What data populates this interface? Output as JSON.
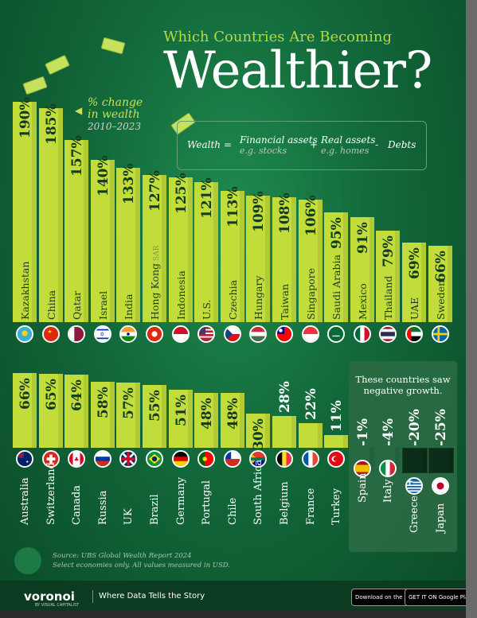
{
  "title_small": "Which Countries Are Becoming",
  "title_large": "Wealthier?",
  "legend": {
    "line1": "% change",
    "line2": "in wealth",
    "period": "2010–2023"
  },
  "formula": {
    "wealth": "Wealth",
    "eq": "=",
    "financial": "Financial assets",
    "financial_ex": "e.g. stocks",
    "plus": "+",
    "real": "Real assets",
    "real_ex": "e.g. homes",
    "minus": "-",
    "debts": "Debts"
  },
  "negative_note": "These countries saw negative growth.",
  "source_line1": "Source: UBS Global Wealth Report 2024",
  "source_line2": "Select economies only. All values measured in USD.",
  "footer": {
    "brand": "voronoi",
    "brand_sub": "BY VISUAL CAPITALIST",
    "tagline": "Where Data Tells the Story",
    "app_store": "Download on the App Store",
    "google_play": "GET IT ON Google Play"
  },
  "colors": {
    "bar": "#c2dc3a",
    "negative_bar": "#0b2d19",
    "background": "#12683a",
    "title_accent": "#b6d93c"
  },
  "chart_data": {
    "type": "bar",
    "unit": "%",
    "ylim": [
      -25,
      190
    ],
    "categories": [
      "Kazakhstan",
      "China",
      "Qatar",
      "Israel",
      "India",
      "Hong Kong",
      "Indonesia",
      "U.S.",
      "Czechia",
      "Hungary",
      "Taiwan",
      "Singapore",
      "Saudi Arabia",
      "Mexico",
      "Thailand",
      "UAE",
      "Sweden",
      "Australia",
      "Switzerland",
      "Canada",
      "Russia",
      "UK",
      "Brazil",
      "Germany",
      "Portugal",
      "Chile",
      "South Africa",
      "Belgium",
      "France",
      "Turkey",
      "Spain",
      "Italy",
      "Greece",
      "Japan"
    ],
    "values": [
      190,
      185,
      157,
      140,
      133,
      127,
      125,
      121,
      113,
      109,
      108,
      106,
      95,
      91,
      79,
      69,
      66,
      66,
      65,
      64,
      58,
      57,
      55,
      51,
      48,
      48,
      30,
      28,
      22,
      11,
      -1,
      -4,
      -20,
      -25
    ],
    "value_labels": [
      "190%",
      "185%",
      "157%",
      "140%",
      "133%",
      "127%",
      "125%",
      "121%",
      "113%",
      "109%",
      "108%",
      "106%",
      "95%",
      "91%",
      "79%",
      "69%",
      "66%",
      "66%",
      "65%",
      "64%",
      "58%",
      "57%",
      "55%",
      "51%",
      "48%",
      "48%",
      "30%",
      "28%",
      "22%",
      "11%",
      "-1%",
      "-4%",
      "-20%",
      "-25%"
    ],
    "label_notes": {
      "Hong Kong": "SAR"
    }
  }
}
